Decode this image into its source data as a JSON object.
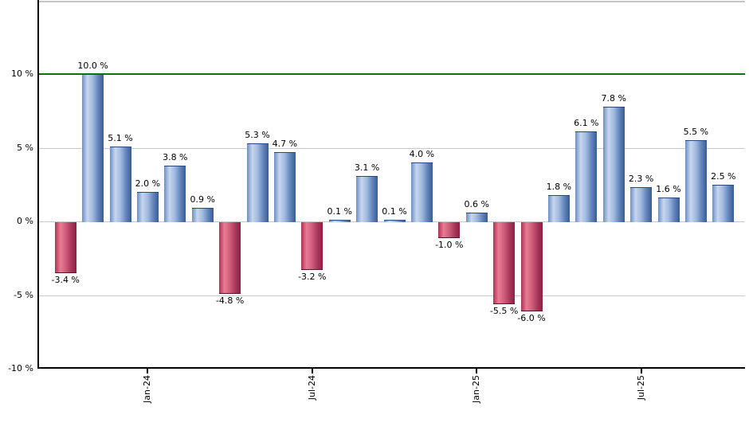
{
  "chart_data": {
    "type": "bar",
    "title": "",
    "unit": "%",
    "values": [
      -3.4,
      10.0,
      5.1,
      2.0,
      3.8,
      0.9,
      -4.8,
      5.3,
      4.7,
      -3.2,
      0.1,
      3.1,
      0.1,
      4.0,
      -1.0,
      0.6,
      -5.5,
      -6.0,
      1.8,
      6.1,
      7.8,
      2.3,
      1.6,
      5.5,
      2.5
    ],
    "bar_labels": [
      "-3.4 %",
      "10.0 %",
      "5.1 %",
      "2.0 %",
      "3.8 %",
      "0.9 %",
      "-4.8 %",
      "5.3 %",
      "4.7 %",
      "-3.2 %",
      "0.1 %",
      "3.1 %",
      "0.1 %",
      "4.0 %",
      "-1.0 %",
      "0.6 %",
      "-5.5 %",
      "-6.0 %",
      "1.8 %",
      "6.1 %",
      "7.8 %",
      "2.3 %",
      "1.6 %",
      "5.5 %",
      "2.5 %"
    ],
    "x_tick_labels": [
      "Jan-24",
      "Jul-24",
      "Jan-25",
      "Jul-25"
    ],
    "x_tick_bar_indices": [
      3,
      9,
      15,
      21
    ],
    "y_tick_labels": [
      "10 %",
      "5 %",
      "0 %",
      "-5 %",
      "-10 %"
    ],
    "y_tick_values": [
      10,
      5,
      0,
      -5,
      -10
    ],
    "ylim": [
      -10,
      15
    ],
    "grid": "horizontal",
    "legend": "none",
    "reference_line": {
      "value": 10,
      "color": "#007a00"
    },
    "colors": {
      "positive_bar": "#5b84c4",
      "negative_bar": "#c23b60",
      "gridline": "#c9c9c9",
      "axis": "#000000",
      "top_border": "#c6c6c6",
      "reference": "#007a00",
      "background": "#ffffff"
    }
  }
}
